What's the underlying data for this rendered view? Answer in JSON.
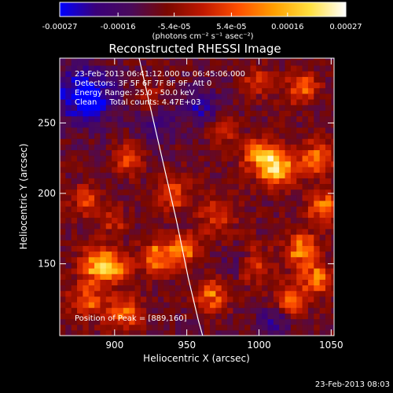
{
  "chart_data": {
    "type": "heatmap",
    "title": "Reconstructed RHESSI Image",
    "xlabel": "Heliocentric X (arcsec)",
    "ylabel": "Heliocentric Y (arcsec)",
    "xlim": [
      862,
      1052
    ],
    "ylim": [
      99,
      296
    ],
    "x_ticks": [
      900,
      950,
      1000,
      1050
    ],
    "y_ticks": [
      150,
      200,
      250
    ],
    "colorbar": {
      "min": -0.00027,
      "max": 0.00027,
      "tick_values": [
        -0.00027,
        -0.00016,
        -5.4e-05,
        5.4e-05,
        0.00016,
        0.00027
      ],
      "tick_labels": [
        "-0.00027",
        "-0.00016",
        "-5.4e-05",
        "5.4e-05",
        "0.00016",
        "0.00027"
      ],
      "unit_label": "(photons cm⁻² s⁻¹ asec⁻²)",
      "colormap": [
        "#0000ff",
        "#3a007a",
        "#4a0a5a",
        "#7a0800",
        "#c01800",
        "#ff5000",
        "#ffa000",
        "#ffe040",
        "#ffffff"
      ]
    },
    "annotations": [
      "23-Feb-2013 06:41:12.000 to 06:45:06.000",
      "Detectors: 3F 5F 6F 7F 8F 9F, Att 0",
      "Energy Range: 25.0 - 50.0 keV",
      "Clean     Total counts: 4.47E+03"
    ],
    "peak_text": "Position of Peak = [889,160]",
    "peak_position": [
      889,
      160
    ],
    "limb_curve": [
      [
        917,
        296
      ],
      [
        925,
        260
      ],
      [
        934,
        220
      ],
      [
        943,
        180
      ],
      [
        951,
        140
      ],
      [
        958,
        110
      ],
      [
        961,
        99
      ]
    ],
    "hotspots": [
      {
        "x": 889,
        "y": 150,
        "amp": 0.00027,
        "sigma": 8
      },
      {
        "x": 903,
        "y": 147,
        "amp": 0.00016,
        "sigma": 7
      },
      {
        "x": 882,
        "y": 125,
        "amp": 0.00015,
        "sigma": 9
      },
      {
        "x": 907,
        "y": 115,
        "amp": 0.00017,
        "sigma": 8
      },
      {
        "x": 930,
        "y": 155,
        "amp": 0.00021,
        "sigma": 8
      },
      {
        "x": 948,
        "y": 160,
        "amp": 0.00019,
        "sigma": 7
      },
      {
        "x": 880,
        "y": 195,
        "amp": 0.00012,
        "sigma": 8
      },
      {
        "x": 910,
        "y": 225,
        "amp": 0.00016,
        "sigma": 7
      },
      {
        "x": 940,
        "y": 200,
        "amp": 0.00014,
        "sigma": 8
      },
      {
        "x": 970,
        "y": 185,
        "amp": 0.00011,
        "sigma": 10
      },
      {
        "x": 1013,
        "y": 218,
        "amp": 0.00026,
        "sigma": 9
      },
      {
        "x": 1000,
        "y": 228,
        "amp": 0.0002,
        "sigma": 8
      },
      {
        "x": 1040,
        "y": 225,
        "amp": 0.0002,
        "sigma": 8
      },
      {
        "x": 1045,
        "y": 190,
        "amp": 0.00018,
        "sigma": 8
      },
      {
        "x": 1030,
        "y": 160,
        "amp": 0.00022,
        "sigma": 8
      },
      {
        "x": 1040,
        "y": 140,
        "amp": 0.00019,
        "sigma": 7
      },
      {
        "x": 1022,
        "y": 125,
        "amp": 0.00016,
        "sigma": 8
      },
      {
        "x": 968,
        "y": 128,
        "amp": 0.00017,
        "sigma": 8
      },
      {
        "x": 995,
        "y": 150,
        "amp": 0.00012,
        "sigma": 9
      },
      {
        "x": 1030,
        "y": 275,
        "amp": 0.00014,
        "sigma": 8
      },
      {
        "x": 1000,
        "y": 280,
        "amp": 0.00012,
        "sigma": 7
      },
      {
        "x": 975,
        "y": 245,
        "amp": 0.0001,
        "sigma": 7
      },
      {
        "x": 925,
        "y": 268,
        "amp": 8e-05,
        "sigma": 7
      },
      {
        "x": 900,
        "y": 180,
        "amp": 9e-05,
        "sigma": 7
      }
    ],
    "coldspots": [
      {
        "x": 880,
        "y": 270,
        "amp": -0.00022,
        "sigma": 14
      },
      {
        "x": 930,
        "y": 250,
        "amp": -0.0001,
        "sigma": 10
      },
      {
        "x": 960,
        "y": 262,
        "amp": -0.00012,
        "sigma": 9
      },
      {
        "x": 985,
        "y": 150,
        "amp": -9e-05,
        "sigma": 8
      },
      {
        "x": 1010,
        "y": 110,
        "amp": -0.0001,
        "sigma": 8
      }
    ]
  },
  "footer": {
    "timestamp": "23-Feb-2013 08:03"
  }
}
